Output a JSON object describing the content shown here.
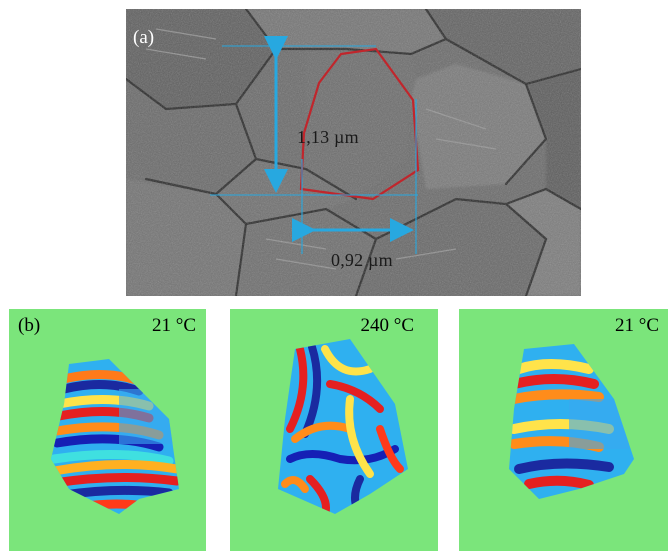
{
  "panel_a": {
    "label": "(a)",
    "height_measure": "1,13 µm",
    "width_measure": "0,92 µm",
    "outline_color": "#c0262c",
    "arrow_color": "#27a8e0"
  },
  "panel_b": {
    "label": "(b)",
    "background_color": "#7be57b",
    "maps": [
      {
        "temperature": "21 °C"
      },
      {
        "temperature": "240 °C"
      },
      {
        "temperature": "21 °C"
      }
    ]
  }
}
